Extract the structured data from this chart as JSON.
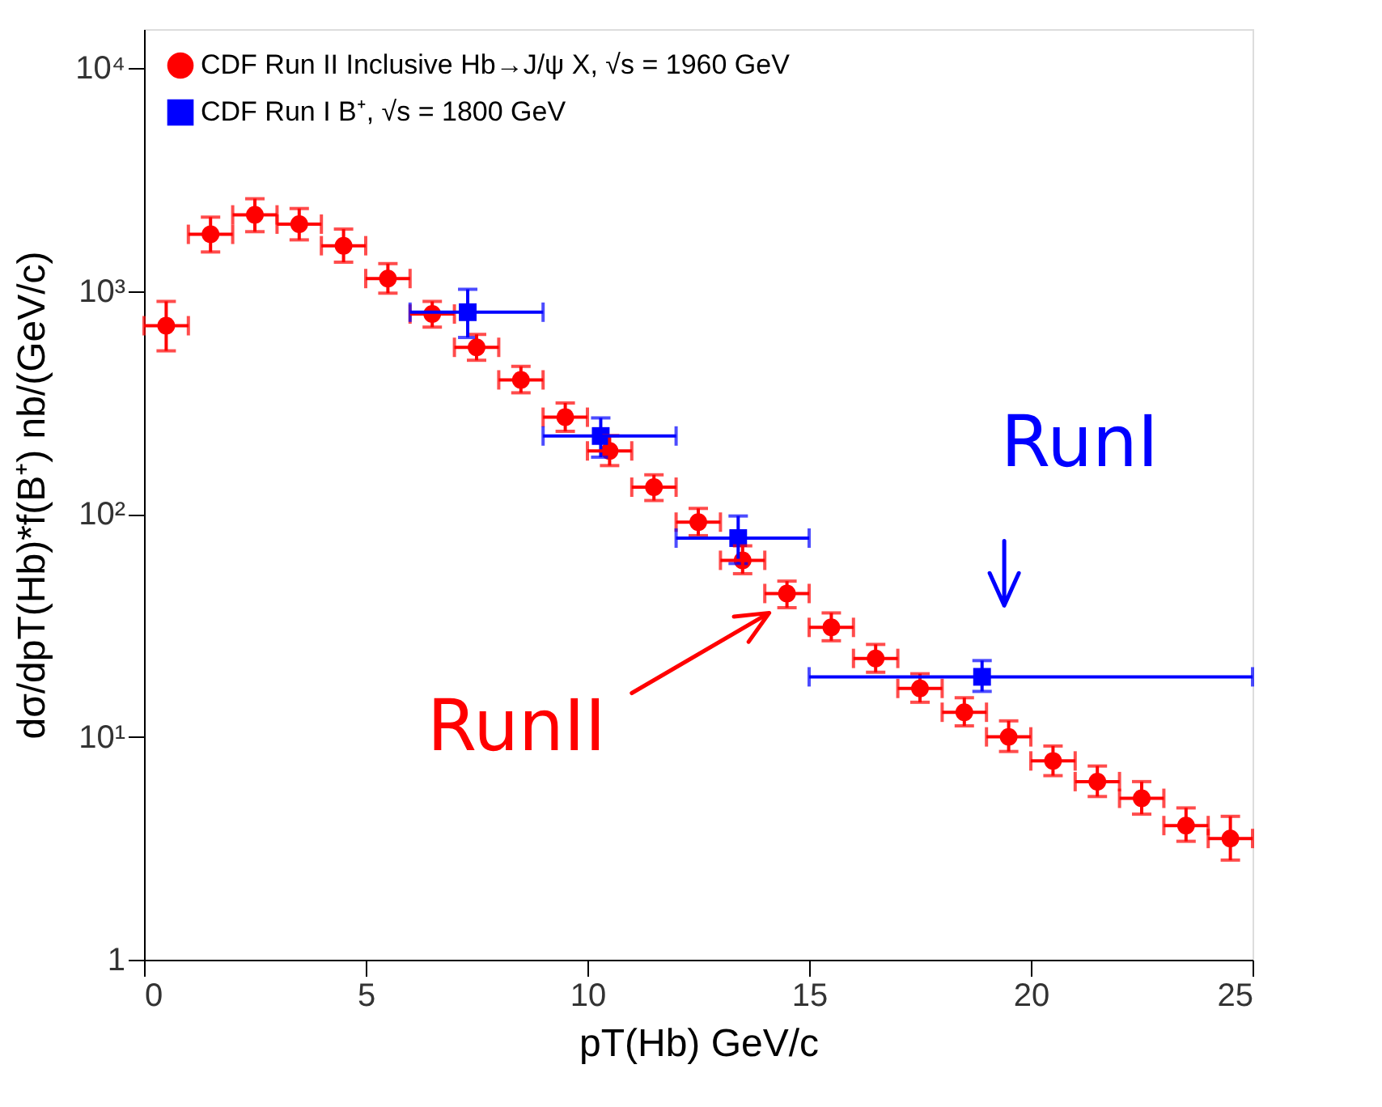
{
  "chart_data": {
    "type": "scatter",
    "xlabel": "pT(Hb) GeV/c",
    "ylabel": "dσ/dpT(Hb)*f(B⁺) nb/(GeV/c)",
    "xlim": [
      0,
      25
    ],
    "xticks": [
      0,
      5,
      10,
      15,
      20,
      25
    ],
    "ylim": [
      1,
      15000
    ],
    "yticks": [
      1,
      {
        "value": 10,
        "label": "10¹"
      },
      {
        "value": 100,
        "label": "10²"
      },
      {
        "value": 1000,
        "label": "10³"
      },
      {
        "value": 10000,
        "label": "10⁴"
      }
    ],
    "log": "y",
    "grid": false,
    "legend": "top left",
    "series": [
      {
        "name": "CDF Run II Inclusive Hb→J/ψ X, √s = 1960 GeV",
        "color": "#ff0000",
        "marker": "circle",
        "x": [
          0.5,
          1.5,
          2.5,
          3.5,
          4.5,
          5.5,
          6.5,
          7.5,
          8.5,
          9.5,
          10.5,
          11.5,
          12.5,
          13.5,
          14.5,
          15.5,
          16.5,
          17.5,
          18.5,
          19.5,
          20.5,
          21.5,
          22.5,
          23.5,
          24.5
        ],
        "values": [
          700,
          1800,
          2200,
          2000,
          1600,
          1140,
          790,
          560,
          400,
          272,
          192,
          132,
          92,
          62,
          44,
          31,
          22.5,
          16.5,
          12.9,
          10,
          7.8,
          6.3,
          5.3,
          4.0,
          3.5
        ],
        "errors": [
          [
            540,
            900
          ],
          [
            1500,
            2150
          ],
          [
            1850,
            2600
          ],
          [
            1700,
            2350
          ],
          [
            1350,
            1900
          ],
          [
            980,
            1330
          ],
          [
            690,
            900
          ],
          [
            490,
            640
          ],
          [
            350,
            460
          ],
          [
            235,
            315
          ],
          [
            165,
            225
          ],
          [
            115,
            150
          ],
          [
            80,
            106
          ],
          [
            54,
            72
          ],
          [
            38,
            50
          ],
          [
            27,
            36
          ],
          [
            19.5,
            26
          ],
          [
            14.3,
            19.2
          ],
          [
            11.2,
            15
          ],
          [
            8.6,
            11.8
          ],
          [
            6.7,
            9.1
          ],
          [
            5.4,
            7.4
          ],
          [
            4.5,
            6.3
          ],
          [
            3.4,
            4.8
          ],
          [
            2.8,
            4.4
          ]
        ],
        "xerrors": [
          0.5,
          0.5,
          0.5,
          0.5,
          0.5,
          0.5,
          0.5,
          0.5,
          0.5,
          0.5,
          0.5,
          0.5,
          0.5,
          0.5,
          0.5,
          0.5,
          0.5,
          0.5,
          0.5,
          0.5,
          0.5,
          0.5,
          0.5,
          0.5,
          0.5
        ]
      },
      {
        "name": "CDF Run I B⁺, √s = 1800 GeV",
        "color": "#0000ff",
        "marker": "square",
        "x": [
          7.3,
          10.3,
          13.4,
          18.9
        ],
        "values": [
          805,
          224,
          78,
          18.6
        ],
        "errors": [
          [
            620,
            1020
          ],
          [
            180,
            270
          ],
          [
            60,
            98
          ],
          [
            16,
            22
          ]
        ],
        "xerrors": [
          [
            6,
            9
          ],
          [
            9,
            12
          ],
          [
            12,
            15
          ],
          [
            15,
            25
          ]
        ]
      }
    ],
    "annotations": [
      {
        "text": "RunII",
        "x": 14.5,
        "y": 44
      },
      {
        "text": "RunI",
        "x": 18.9,
        "y": 18.6
      }
    ]
  }
}
